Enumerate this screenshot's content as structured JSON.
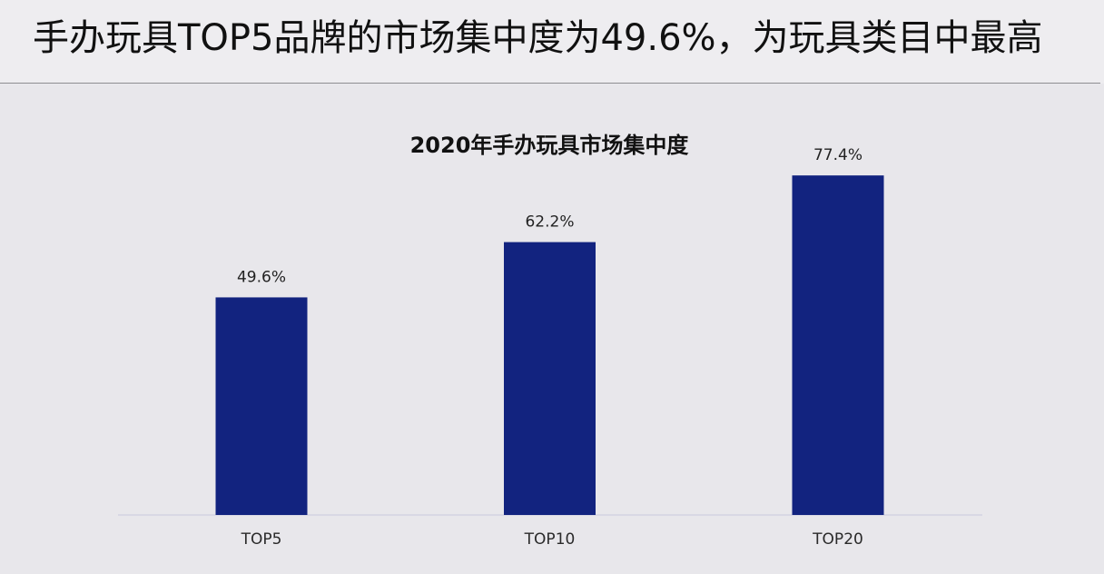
{
  "page": {
    "title": "手办玩具TOP5品牌的市场集中度为49.6%，为玩具类目中最高"
  },
  "chart_data": {
    "type": "bar",
    "title": "2020年手办玩具市场集中度",
    "categories": [
      "TOP5",
      "TOP10",
      "TOP20"
    ],
    "values": [
      49.6,
      62.2,
      77.4
    ],
    "data_labels": [
      "49.6%",
      "62.2%",
      "77.4%"
    ],
    "unit": "%",
    "ylim": [
      0,
      100
    ],
    "xlabel": "",
    "ylabel": "",
    "grid": false,
    "legend": "none",
    "colors": {
      "bar": "#12237f",
      "axis": "#cfd0e0"
    }
  }
}
